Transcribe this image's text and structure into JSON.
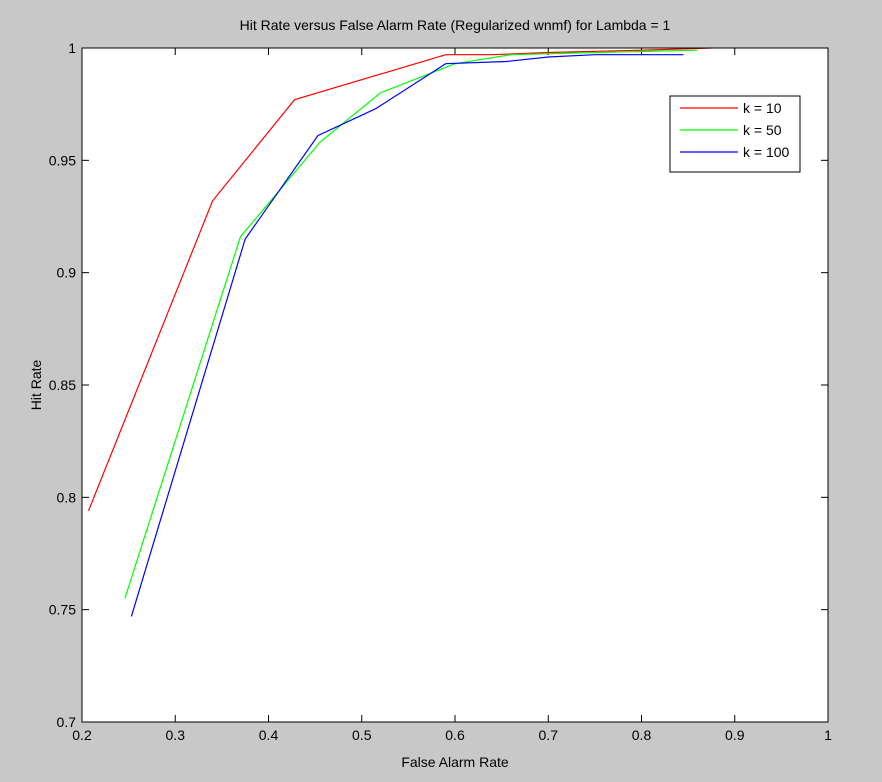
{
  "window": {
    "background": "#c8c8c8"
  },
  "chart_data": {
    "type": "line",
    "title": "Hit Rate versus False Alarm Rate (Regularized wnmf) for Lambda = 1",
    "xlabel": "False Alarm Rate",
    "ylabel": "Hit Rate",
    "xlim": [
      0.2,
      1
    ],
    "ylim": [
      0.7,
      1
    ],
    "xticks": [
      0.2,
      0.3,
      0.4,
      0.5,
      0.6,
      0.7,
      0.8,
      0.9,
      1
    ],
    "yticks": [
      0.7,
      0.75,
      0.8,
      0.85,
      0.9,
      0.95,
      1
    ],
    "xtick_labels": [
      "0.2",
      "0.3",
      "0.4",
      "0.5",
      "0.6",
      "0.7",
      "0.8",
      "0.9",
      "1"
    ],
    "ytick_labels": [
      "0.7",
      "0.75",
      "0.8",
      "0.85",
      "0.9",
      "0.95",
      "1"
    ],
    "grid": false,
    "legend_position": "top-right",
    "series": [
      {
        "name": "k = 10",
        "color": "#ff0000",
        "x": [
          0.207,
          0.34,
          0.428,
          0.59,
          0.64,
          0.7,
          0.8,
          0.875
        ],
        "y": [
          0.794,
          0.932,
          0.977,
          0.997,
          0.997,
          0.998,
          0.999,
          1.0
        ]
      },
      {
        "name": "k = 50",
        "color": "#00ff00",
        "x": [
          0.246,
          0.37,
          0.455,
          0.52,
          0.6,
          0.66,
          0.75,
          0.86
        ],
        "y": [
          0.755,
          0.916,
          0.958,
          0.98,
          0.993,
          0.997,
          0.998,
          0.999
        ]
      },
      {
        "name": "k = 100",
        "color": "#0000ff",
        "x": [
          0.253,
          0.375,
          0.453,
          0.515,
          0.59,
          0.655,
          0.7,
          0.75,
          0.845
        ],
        "y": [
          0.747,
          0.915,
          0.961,
          0.973,
          0.993,
          0.994,
          0.996,
          0.997,
          0.997
        ]
      }
    ]
  }
}
